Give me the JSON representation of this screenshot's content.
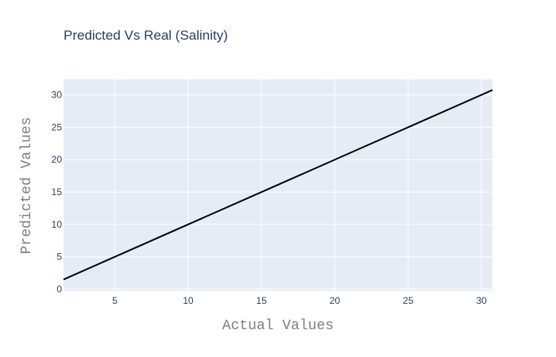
{
  "chart_data": {
    "type": "line",
    "title": "Predicted Vs Real (Salinity)",
    "xlabel": "Actual Values",
    "ylabel": "Predicted Values",
    "xlim": [
      1.5,
      30.75
    ],
    "ylim": [
      -0.3,
      32.4
    ],
    "xticks": [
      5,
      10,
      15,
      20,
      25,
      30
    ],
    "yticks": [
      0,
      5,
      10,
      15,
      20,
      25,
      30
    ],
    "grid": true,
    "series": [
      {
        "color": "#000000",
        "x": [
          1.5,
          30.75
        ],
        "y": [
          1.5,
          30.75
        ]
      }
    ]
  },
  "colors": {
    "plot_background": "#e5ecf6",
    "grid": "#ffffff",
    "text": "#2a3f5f",
    "axis_title": "#7f7f7f"
  }
}
